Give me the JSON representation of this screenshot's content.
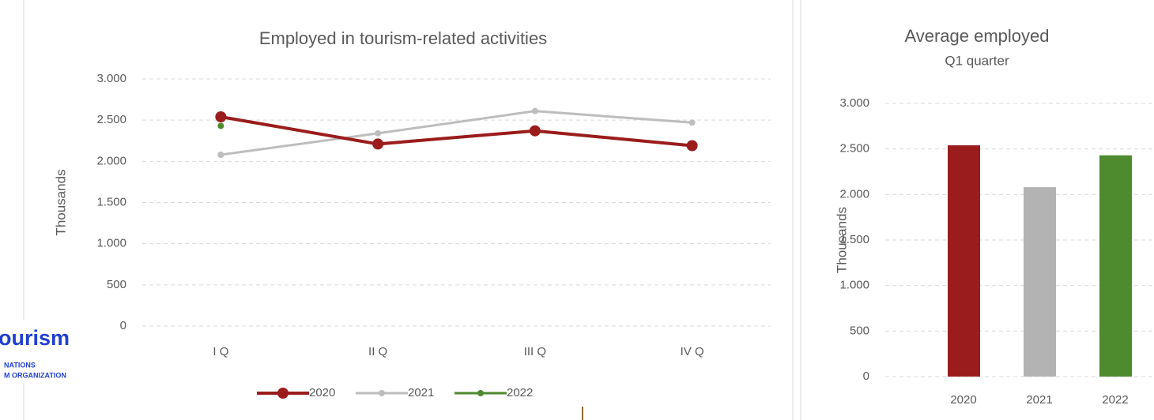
{
  "logo": {
    "word": "ourism",
    "line1": "NATIONS",
    "line2": "M ORGANIZATION"
  },
  "chart_data": [
    {
      "type": "line",
      "title": "Employed in tourism-related activities",
      "y_label": "Thousands",
      "categories": [
        "I Q",
        "II Q",
        "III Q",
        "IV Q"
      ],
      "series": [
        {
          "name": "2020",
          "color": "#9b1c1c",
          "values": [
            2540,
            2210,
            2370,
            2190
          ]
        },
        {
          "name": "2021",
          "color": "#bdbdbd",
          "values": [
            2080,
            2340,
            2610,
            2470
          ]
        },
        {
          "name": "2022",
          "color": "#4e8a2e",
          "values": [
            2430,
            null,
            null,
            null
          ]
        }
      ],
      "ylim": [
        0,
        3000
      ],
      "yticks": [
        0,
        500,
        {
          "value": 1000,
          "label": "1.000"
        },
        {
          "value": 1500,
          "label": "1.500"
        },
        {
          "value": 2000,
          "label": "2.000"
        },
        {
          "value": 2500,
          "label": "2.500"
        },
        {
          "value": 3000,
          "label": "3.000"
        }
      ],
      "grid": true,
      "legend": "bottom"
    },
    {
      "type": "bar",
      "title": "Average employed",
      "subtitle": "Q1 quarter",
      "y_label": "Thousands",
      "categories": [
        "2020",
        "2021",
        "2022"
      ],
      "values": [
        2540,
        2080,
        2430
      ],
      "colors": [
        "#9b1c1c",
        "#b3b3b3",
        "#4e8a2e"
      ],
      "ylim": [
        0,
        3000
      ],
      "yticks": [
        0,
        500,
        {
          "value": 1000,
          "label": "1.000"
        },
        {
          "value": 1500,
          "label": "1.500"
        },
        {
          "value": 2000,
          "label": "2.000"
        },
        {
          "value": 2500,
          "label": "2.500"
        },
        {
          "value": 3000,
          "label": "3.000"
        }
      ],
      "grid": true
    }
  ]
}
